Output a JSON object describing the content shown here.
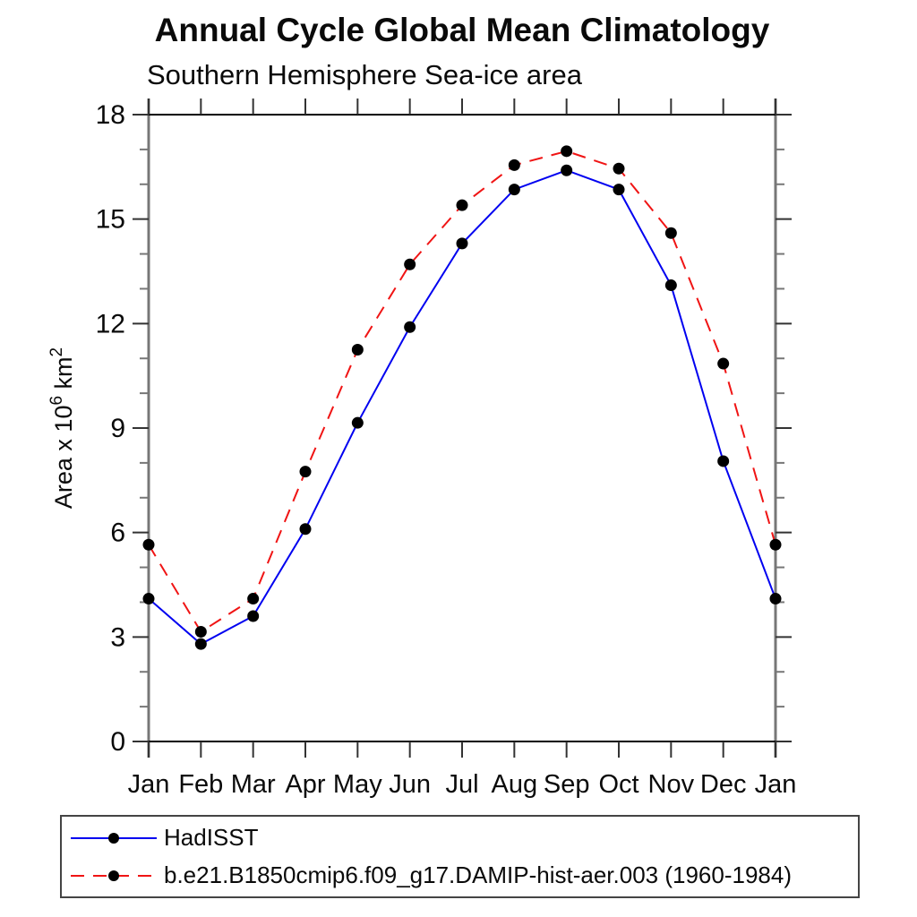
{
  "header": {
    "title": "Annual Cycle Global Mean Climatology",
    "subtitle": "Southern Hemisphere Sea-ice area"
  },
  "chart_data": {
    "type": "line",
    "x": [
      "Jan",
      "Feb",
      "Mar",
      "Apr",
      "May",
      "Jun",
      "Jul",
      "Aug",
      "Sep",
      "Oct",
      "Nov",
      "Dec",
      "Jan"
    ],
    "title": "Annual Cycle Global Mean Climatology",
    "subtitle": "Southern Hemisphere Sea-ice area",
    "xlabel": "",
    "ylabel": "Area x 10^6 km^2",
    "ylim": [
      0,
      18
    ],
    "ytick_major": [
      0,
      3,
      6,
      9,
      12,
      15,
      18
    ],
    "ytick_minor_step": 1,
    "grid": false,
    "legend_position": "bottom-box",
    "axis_colors": {
      "frame_horizontal": "#000000",
      "frame_vertical": "#777777",
      "tick_major": "#333333",
      "tick_minor": "#777777"
    },
    "series": [
      {
        "name": "HadISST",
        "color": "#0000f0",
        "dash": "solid",
        "marker": "filled-circle",
        "marker_color": "#000000",
        "values": [
          4.1,
          2.8,
          3.6,
          6.1,
          9.15,
          11.9,
          14.3,
          15.85,
          16.4,
          15.85,
          13.1,
          8.05,
          4.1
        ]
      },
      {
        "name": "b.e21.B1850cmip6.f09_g17.DAMIP-hist-aer.003 (1960-1984)",
        "color": "#f01414",
        "dash": "dashed",
        "marker": "filled-circle",
        "marker_color": "#000000",
        "values": [
          5.65,
          3.15,
          4.1,
          7.75,
          11.25,
          13.7,
          15.4,
          16.55,
          16.95,
          16.45,
          14.6,
          10.85,
          5.65
        ]
      }
    ]
  }
}
